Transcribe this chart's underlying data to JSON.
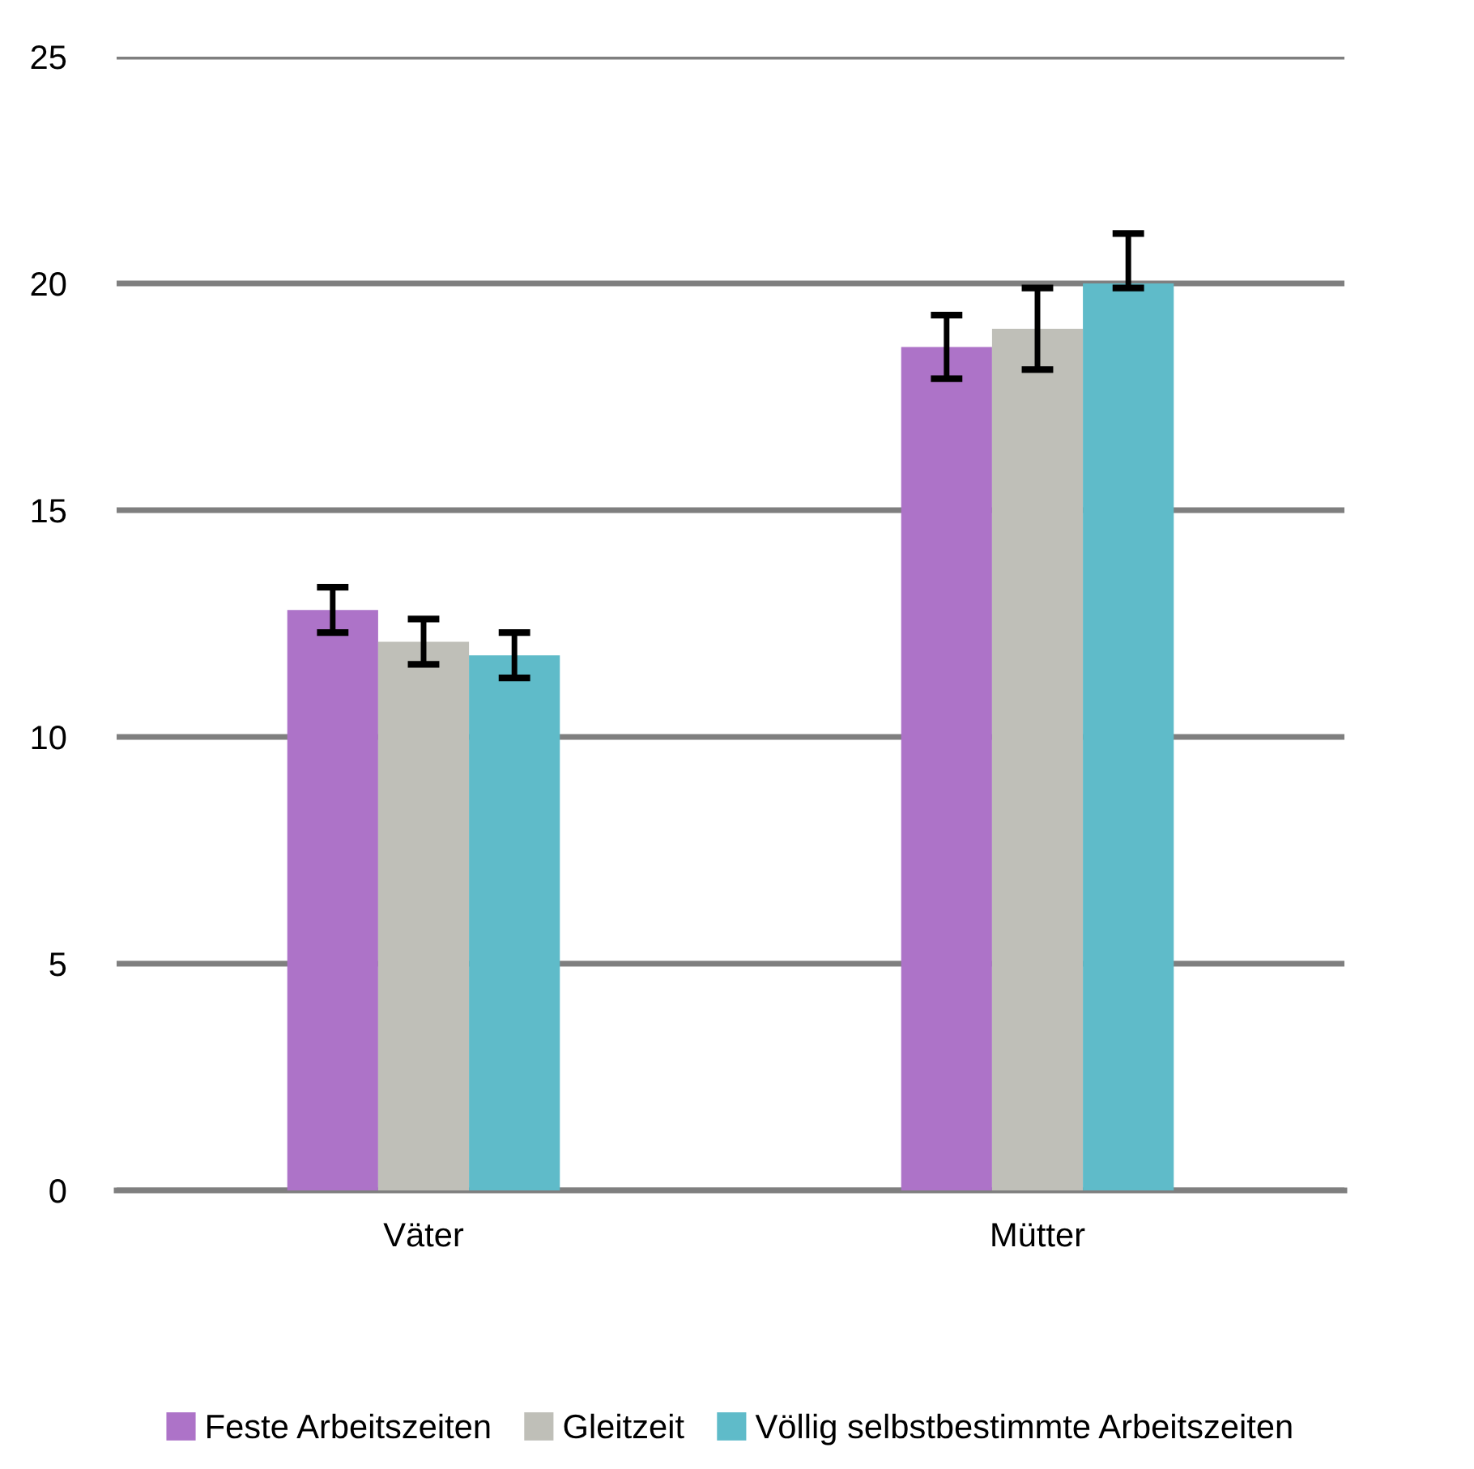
{
  "chart_data": {
    "type": "bar",
    "categories": [
      "Väter",
      "Mütter"
    ],
    "series": [
      {
        "name": "Feste Arbeitszeiten",
        "color": "#ad73c8",
        "values": [
          12.8,
          18.6
        ],
        "errors": [
          0.5,
          0.7
        ]
      },
      {
        "name": "Gleitzeit",
        "color": "#bfbfb8",
        "values": [
          12.1,
          19.0
        ],
        "errors": [
          0.5,
          0.9
        ]
      },
      {
        "name": "Völlig selbstbestimmte Arbeitszeiten",
        "color": "#5fbbc9",
        "values": [
          11.8,
          20.0
        ],
        "errors": [
          0.5,
          [
            19.9,
            21.1
          ]
        ]
      }
    ],
    "ylim": [
      0,
      25
    ],
    "yticks": [
      0,
      5,
      10,
      15,
      20,
      25
    ],
    "grid": "y",
    "legend": "bottom"
  }
}
